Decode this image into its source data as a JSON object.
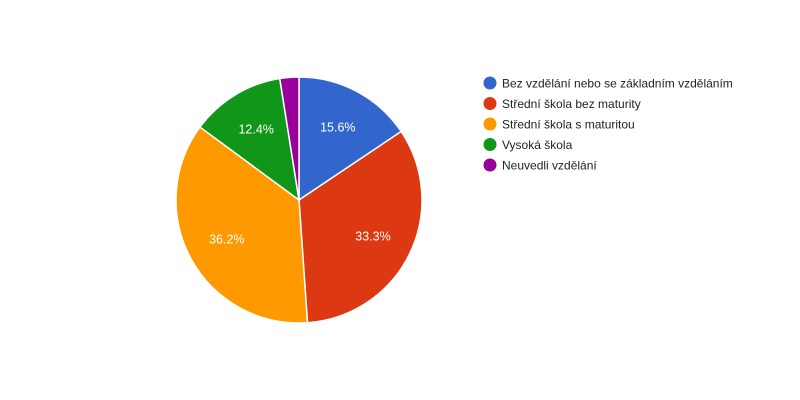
{
  "chart_data": {
    "type": "pie",
    "title": "",
    "legend_position": "right",
    "slices": [
      {
        "label": "Bez vzdělání nebo se základním vzděláním",
        "value": 15.6,
        "display": "15.6%",
        "color": "#3366cc"
      },
      {
        "label": "Střední škola bez maturity",
        "value": 33.3,
        "display": "33.3%",
        "color": "#dc3912"
      },
      {
        "label": "Střední škola s maturitou",
        "value": 36.2,
        "display": "36.2%",
        "color": "#ff9900"
      },
      {
        "label": "Vysoká škola",
        "value": 12.4,
        "display": "12.4%",
        "color": "#109618"
      },
      {
        "label": "Neuvedli vzdělání",
        "value": 2.5,
        "display": "",
        "color": "#990099"
      }
    ]
  }
}
